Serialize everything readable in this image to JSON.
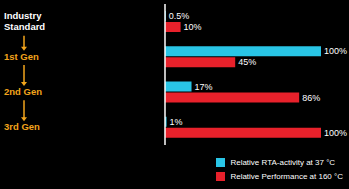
{
  "chart_data": {
    "type": "bar",
    "orientation": "horizontal",
    "categories": [
      "Industry Standard",
      "1st Gen",
      "2nd Gen",
      "3rd Gen"
    ],
    "series": [
      {
        "name": "Relative RTA-activity at 37 °C",
        "color": "#29c5e6",
        "values": [
          0.5,
          100,
          17,
          1
        ],
        "value_labels": [
          "0.5%",
          "100%",
          "17%",
          "1%"
        ]
      },
      {
        "name": "Relative Performance at 160 °C",
        "color": "#e8212b",
        "values": [
          10,
          45,
          86,
          100
        ],
        "value_labels": [
          "10%",
          "45%",
          "86%",
          "100%"
        ]
      }
    ],
    "xlim": [
      0,
      100
    ],
    "data_labels": true,
    "tick_labels": "y",
    "legend": "bottom right"
  }
}
